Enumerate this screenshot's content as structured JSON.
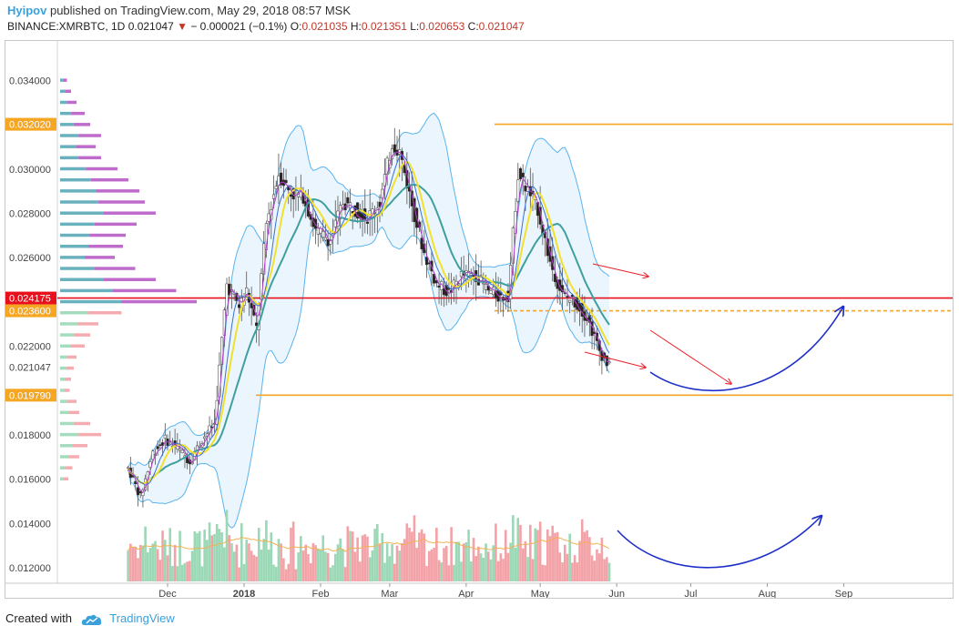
{
  "header": {
    "author": "Hyipov",
    "published_text": "published on TradingView.com, May 29, 2018 08:57 MSK",
    "symbol": "BINANCE:XMRBTC, 1D",
    "last_price": "0.021047",
    "change": "− 0.000021 (−0.1%)",
    "open_label": "O:",
    "open": "0.021035",
    "high_label": "H:",
    "high": "0.021351",
    "low_label": "L:",
    "low": "0.020653",
    "close_label": "C:",
    "close": "0.021047"
  },
  "footer": {
    "created_with": "Created with",
    "brand": "TradingView"
  },
  "chart_data": {
    "type": "candlestick",
    "symbol": "BINANCE:XMRBTC",
    "interval": "1D",
    "y_ticks": [
      "0.034000",
      "0.030000",
      "0.028000",
      "0.026000",
      "0.022000",
      "0.021047",
      "0.018000",
      "0.016000",
      "0.014000",
      "0.012000"
    ],
    "y_range": [
      0.0113,
      0.0357
    ],
    "x_ticks": [
      "Dec",
      "2018",
      "Feb",
      "Mar",
      "Apr",
      "May",
      "Jun",
      "Jul",
      "Aug",
      "Sep"
    ],
    "price_labels": [
      {
        "text": "0.032020",
        "value": 0.03202,
        "color": "#f5a623"
      },
      {
        "text": "0.024175",
        "value": 0.024175,
        "color": "#e8101c"
      },
      {
        "text": "0.023600",
        "value": 0.0236,
        "color": "#f5a623"
      },
      {
        "text": "0.019790",
        "value": 0.01979,
        "color": "#f5a623"
      }
    ],
    "levels": [
      {
        "value": 0.03202,
        "color": "#f5a623",
        "style": "solid"
      },
      {
        "value": 0.024175,
        "color": "#e8101c",
        "style": "solid"
      },
      {
        "value": 0.0236,
        "color": "#f5a623",
        "style": "dashed"
      },
      {
        "value": 0.01979,
        "color": "#f5a623",
        "style": "solid"
      }
    ],
    "price_path": [
      [
        "2017-11-15",
        0.0165
      ],
      [
        "2017-11-20",
        0.0152
      ],
      [
        "2017-11-25",
        0.0172
      ],
      [
        "2017-11-30",
        0.0178
      ],
      [
        "2017-12-05",
        0.0174
      ],
      [
        "2017-12-10",
        0.0168
      ],
      [
        "2017-12-15",
        0.0178
      ],
      [
        "2017-12-20",
        0.0185
      ],
      [
        "2017-12-25",
        0.0248
      ],
      [
        "2017-12-30",
        0.0238
      ],
      [
        "2018-01-02",
        0.0245
      ],
      [
        "2018-01-06",
        0.0228
      ],
      [
        "2018-01-10",
        0.0275
      ],
      [
        "2018-01-15",
        0.0298
      ],
      [
        "2018-01-20",
        0.0289
      ],
      [
        "2018-01-25",
        0.0288
      ],
      [
        "2018-01-30",
        0.0272
      ],
      [
        "2018-02-05",
        0.0268
      ],
      [
        "2018-02-10",
        0.0285
      ],
      [
        "2018-02-15",
        0.0282
      ],
      [
        "2018-02-20",
        0.0278
      ],
      [
        "2018-02-25",
        0.0285
      ],
      [
        "2018-03-02",
        0.0312
      ],
      [
        "2018-03-05",
        0.0308
      ],
      [
        "2018-03-10",
        0.0284
      ],
      [
        "2018-03-15",
        0.0262
      ],
      [
        "2018-03-20",
        0.0248
      ],
      [
        "2018-03-25",
        0.0244
      ],
      [
        "2018-03-30",
        0.0252
      ],
      [
        "2018-04-05",
        0.0252
      ],
      [
        "2018-04-10",
        0.0245
      ],
      [
        "2018-04-15",
        0.0242
      ],
      [
        "2018-04-18",
        0.0243
      ],
      [
        "2018-04-22",
        0.0298
      ],
      [
        "2018-04-25",
        0.0292
      ],
      [
        "2018-04-30",
        0.0282
      ],
      [
        "2018-05-05",
        0.0258
      ],
      [
        "2018-05-10",
        0.0243
      ],
      [
        "2018-05-15",
        0.024
      ],
      [
        "2018-05-20",
        0.0233
      ],
      [
        "2018-05-25",
        0.0218
      ],
      [
        "2018-05-29",
        0.021047
      ]
    ],
    "volume_profile_rows": [
      {
        "price": 0.034,
        "vol": 0.05
      },
      {
        "price": 0.0335,
        "vol": 0.08
      },
      {
        "price": 0.033,
        "vol": 0.12
      },
      {
        "price": 0.0325,
        "vol": 0.18
      },
      {
        "price": 0.032,
        "vol": 0.22
      },
      {
        "price": 0.0315,
        "vol": 0.3
      },
      {
        "price": 0.031,
        "vol": 0.26
      },
      {
        "price": 0.0305,
        "vol": 0.3
      },
      {
        "price": 0.03,
        "vol": 0.42
      },
      {
        "price": 0.0295,
        "vol": 0.5
      },
      {
        "price": 0.029,
        "vol": 0.58
      },
      {
        "price": 0.0285,
        "vol": 0.62
      },
      {
        "price": 0.028,
        "vol": 0.7
      },
      {
        "price": 0.0275,
        "vol": 0.56
      },
      {
        "price": 0.027,
        "vol": 0.48
      },
      {
        "price": 0.0265,
        "vol": 0.46
      },
      {
        "price": 0.026,
        "vol": 0.4
      },
      {
        "price": 0.0255,
        "vol": 0.55
      },
      {
        "price": 0.025,
        "vol": 0.7
      },
      {
        "price": 0.0245,
        "vol": 0.85
      },
      {
        "price": 0.024,
        "vol": 1.0
      },
      {
        "price": 0.0235,
        "vol": 0.45
      },
      {
        "price": 0.023,
        "vol": 0.28
      },
      {
        "price": 0.0225,
        "vol": 0.22
      },
      {
        "price": 0.022,
        "vol": 0.18
      },
      {
        "price": 0.0215,
        "vol": 0.12
      },
      {
        "price": 0.021,
        "vol": 0.1
      },
      {
        "price": 0.0205,
        "vol": 0.08
      },
      {
        "price": 0.02,
        "vol": 0.07
      },
      {
        "price": 0.0195,
        "vol": 0.12
      },
      {
        "price": 0.019,
        "vol": 0.14
      },
      {
        "price": 0.0185,
        "vol": 0.22
      },
      {
        "price": 0.018,
        "vol": 0.3
      },
      {
        "price": 0.0175,
        "vol": 0.2
      },
      {
        "price": 0.017,
        "vol": 0.14
      },
      {
        "price": 0.0165,
        "vol": 0.09
      },
      {
        "price": 0.016,
        "vol": 0.06
      }
    ],
    "colors": {
      "up_candle": "#ffffff",
      "down_candle": "#2b1f1f",
      "wick": "#555555",
      "bb_band": "#5ab4ef",
      "bb_fill": "#e6f3fc",
      "ma_fast": "#3d6ed8",
      "ma_purple": "#b040c8",
      "ma_yellow": "#f2e12a",
      "ma_teal": "#3f9f9f",
      "vol_up": "#9bd8b6",
      "vol_down": "#f3a3a8",
      "vol_ma": "#f4b050",
      "arrow_red": "#e8202a",
      "arrow_blue": "#1e2fc8",
      "axis_text": "#444444"
    }
  }
}
